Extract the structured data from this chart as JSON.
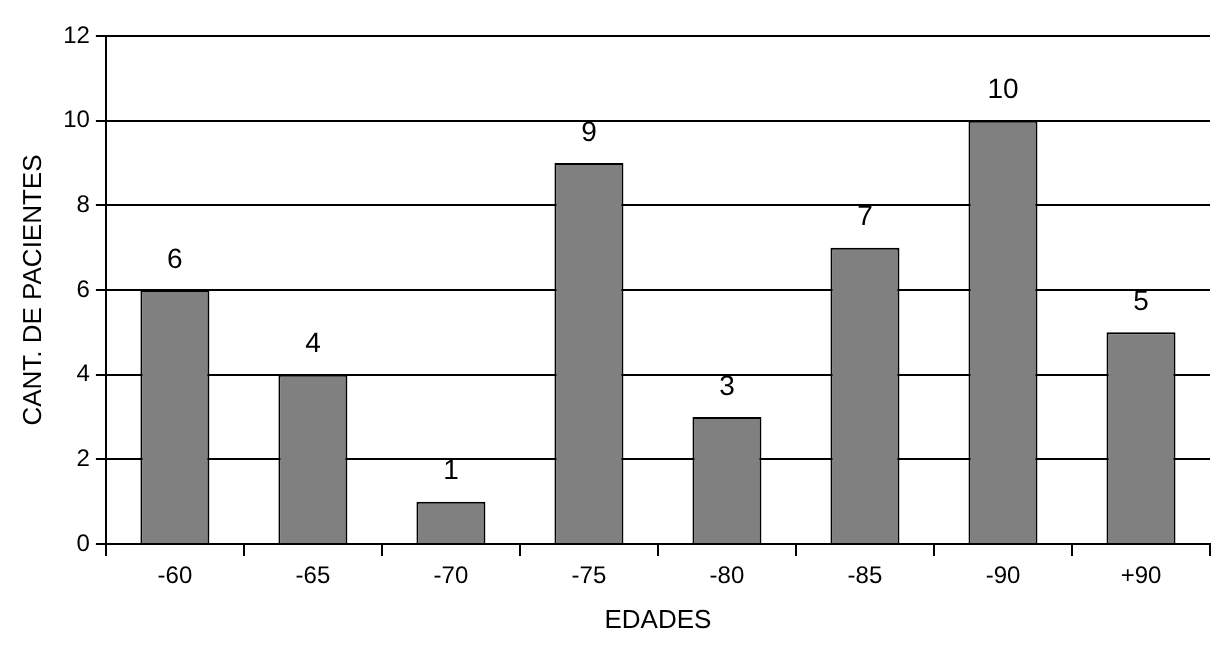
{
  "chart_data": {
    "type": "bar",
    "xlabel": "EDADES",
    "ylabel": "CANT. DE PACIENTES",
    "categories": [
      "-60",
      "-65",
      "-70",
      "-75",
      "-80",
      "-85",
      "-90",
      "+90"
    ],
    "values": [
      6,
      4,
      1,
      9,
      3,
      7,
      10,
      5
    ],
    "color": "#808080",
    "ylim": [
      0,
      12
    ],
    "yticks": [
      0,
      2,
      4,
      6,
      8,
      10,
      12
    ],
    "grid": "y",
    "legend": false,
    "data_labels": true
  }
}
